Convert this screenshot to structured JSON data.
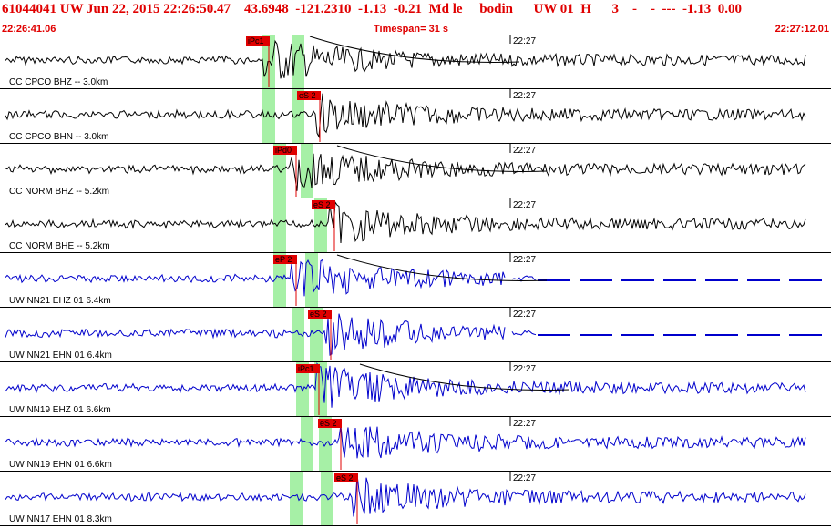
{
  "header": {
    "event_line": "61044041 UW Jun 22, 2015 22:26:50.47    43.6948  -121.2310  -1.13  -0.21  Md le     bodin      UW 01  H      3    -    -  ---  -1.13  0.00",
    "start_time": "22:26:41.06",
    "timespan": "Timespan=  31 s",
    "end_time": "22:27:12.01"
  },
  "colors": {
    "header_red": "#e00000",
    "pick_red": "#e00000",
    "window_green": "#a6f0a6",
    "trace_black": "#000000",
    "trace_blue": "#0000cc",
    "grid_line": "#000000"
  },
  "time_tick_label": "22:27",
  "channels": [
    {
      "label": "CC CPCO BHZ -- 3.0km",
      "color": "trace_black",
      "pick": "iPc1",
      "pick_type": "P",
      "coda_curve": true,
      "gap": false,
      "amp": 0.55
    },
    {
      "label": "CC CPCO BHN -- 3.0km",
      "color": "trace_black",
      "pick": "eS 2",
      "pick_type": "S",
      "coda_curve": false,
      "gap": false,
      "amp": 0.5
    },
    {
      "label": "CC NORM BHZ -- 5.2km",
      "color": "trace_black",
      "pick": "iPd0",
      "pick_type": "P",
      "coda_curve": true,
      "gap": false,
      "amp": 0.55
    },
    {
      "label": "CC NORM BHE -- 5.2km",
      "color": "trace_black",
      "pick": "eS 2",
      "pick_type": "S",
      "coda_curve": false,
      "gap": false,
      "amp": 0.5
    },
    {
      "label": "UW NN21 EHZ 01 6.4km",
      "color": "trace_blue",
      "pick": "eP 2",
      "pick_type": "P",
      "coda_curve": true,
      "gap": true,
      "amp": 0.55
    },
    {
      "label": "UW NN21 EHN 01 6.4km",
      "color": "trace_blue",
      "pick": "eS 2",
      "pick_type": "S",
      "coda_curve": false,
      "gap": true,
      "amp": 0.5
    },
    {
      "label": "UW NN19 EHZ 01 6.6km",
      "color": "trace_blue",
      "pick": "iPc1",
      "pick_type": "P",
      "coda_curve": true,
      "gap": false,
      "amp": 0.55
    },
    {
      "label": "UW NN19 EHN 01 6.6km",
      "color": "trace_blue",
      "pick": "eS 2",
      "pick_type": "S",
      "coda_curve": false,
      "gap": false,
      "amp": 0.5
    },
    {
      "label": "UW NN17 EHN 01 8.3km",
      "color": "trace_blue",
      "pick": "eS 2",
      "pick_type": "S",
      "coda_curve": false,
      "gap": false,
      "amp": 0.5
    }
  ]
}
